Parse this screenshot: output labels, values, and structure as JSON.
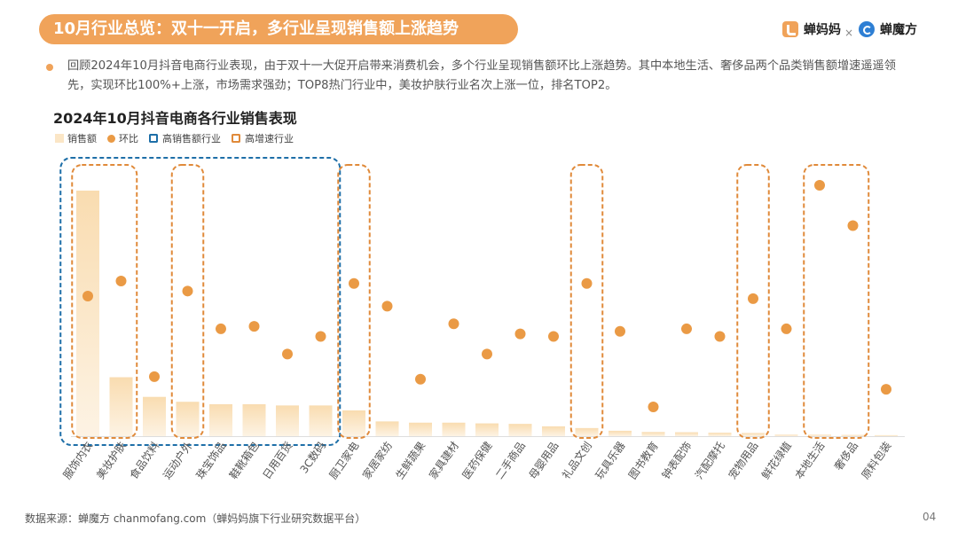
{
  "header": {
    "title": "10月行业总览：双十一开启，多行业呈现销售额上涨趋势",
    "brand_a": "蝉妈妈",
    "separator": "×",
    "brand_b": "蝉魔方"
  },
  "summary": "回顾2024年10月抖音电商行业表现，由于双十一大促开启带来消费机会，多个行业呈现销售额环比上涨趋势。其中本地生活、奢侈品两个品类销售额增速遥遥领先，实现环比100%+上涨，市场需求强劲；TOP8热门行业中，美妆护肤行业名次上涨一位，排名TOP2。",
  "chart_data": {
    "type": "bar",
    "title": "2024年10月抖音电商各行业销售表现",
    "legend": [
      "销售额",
      "环比",
      "高销售额行业",
      "高增速行业"
    ],
    "categories": [
      "服饰内衣",
      "美妆护肤",
      "食品饮料",
      "运动户外",
      "珠宝饰品",
      "鞋靴箱包",
      "日用百货",
      "3C数码",
      "厨卫家电",
      "家居家纺",
      "生鲜蔬果",
      "家具建材",
      "医药保健",
      "二手商品",
      "母婴用品",
      "礼品文创",
      "玩具乐器",
      "图书教育",
      "钟表配饰",
      "汽配摩托",
      "宠物用品",
      "鲜花绿植",
      "本地生活",
      "奢侈品",
      "原料包装"
    ],
    "series": [
      {
        "name": "销售额",
        "values": [
          100,
          24,
          16,
          14,
          13,
          13,
          12.5,
          12.5,
          10.5,
          6,
          5.5,
          5.5,
          5.2,
          5,
          4,
          3.3,
          2.2,
          1.7,
          1.6,
          1.4,
          1.3,
          0.6,
          0.6,
          0.5,
          0.4
        ]
      },
      {
        "name": "环比",
        "values": [
          56,
          62,
          24,
          58,
          43,
          44,
          33,
          40,
          61,
          52,
          23,
          45,
          33,
          41,
          40,
          61,
          42,
          12,
          43,
          40,
          55,
          43,
          100,
          84,
          19
        ]
      }
    ],
    "highlight_high_sales": [
      0,
      7
    ],
    "highlight_high_growth": [
      [
        0,
        1
      ],
      [
        3,
        3
      ],
      [
        8,
        8
      ],
      [
        15,
        15
      ],
      [
        20,
        20
      ],
      [
        22,
        23
      ]
    ],
    "colors": {
      "bar_top": "#f9dcb0",
      "bar_bottom": "#fdf3e4",
      "dot": "#ea9a45",
      "high_sales": "#1e6fa8",
      "high_growth": "#e08a3a",
      "axis": "#dddddd"
    }
  },
  "footer": {
    "source": "数据来源：蝉魔方 chanmofang.com（蝉妈妈旗下行业研究数据平台）",
    "page": "04"
  }
}
